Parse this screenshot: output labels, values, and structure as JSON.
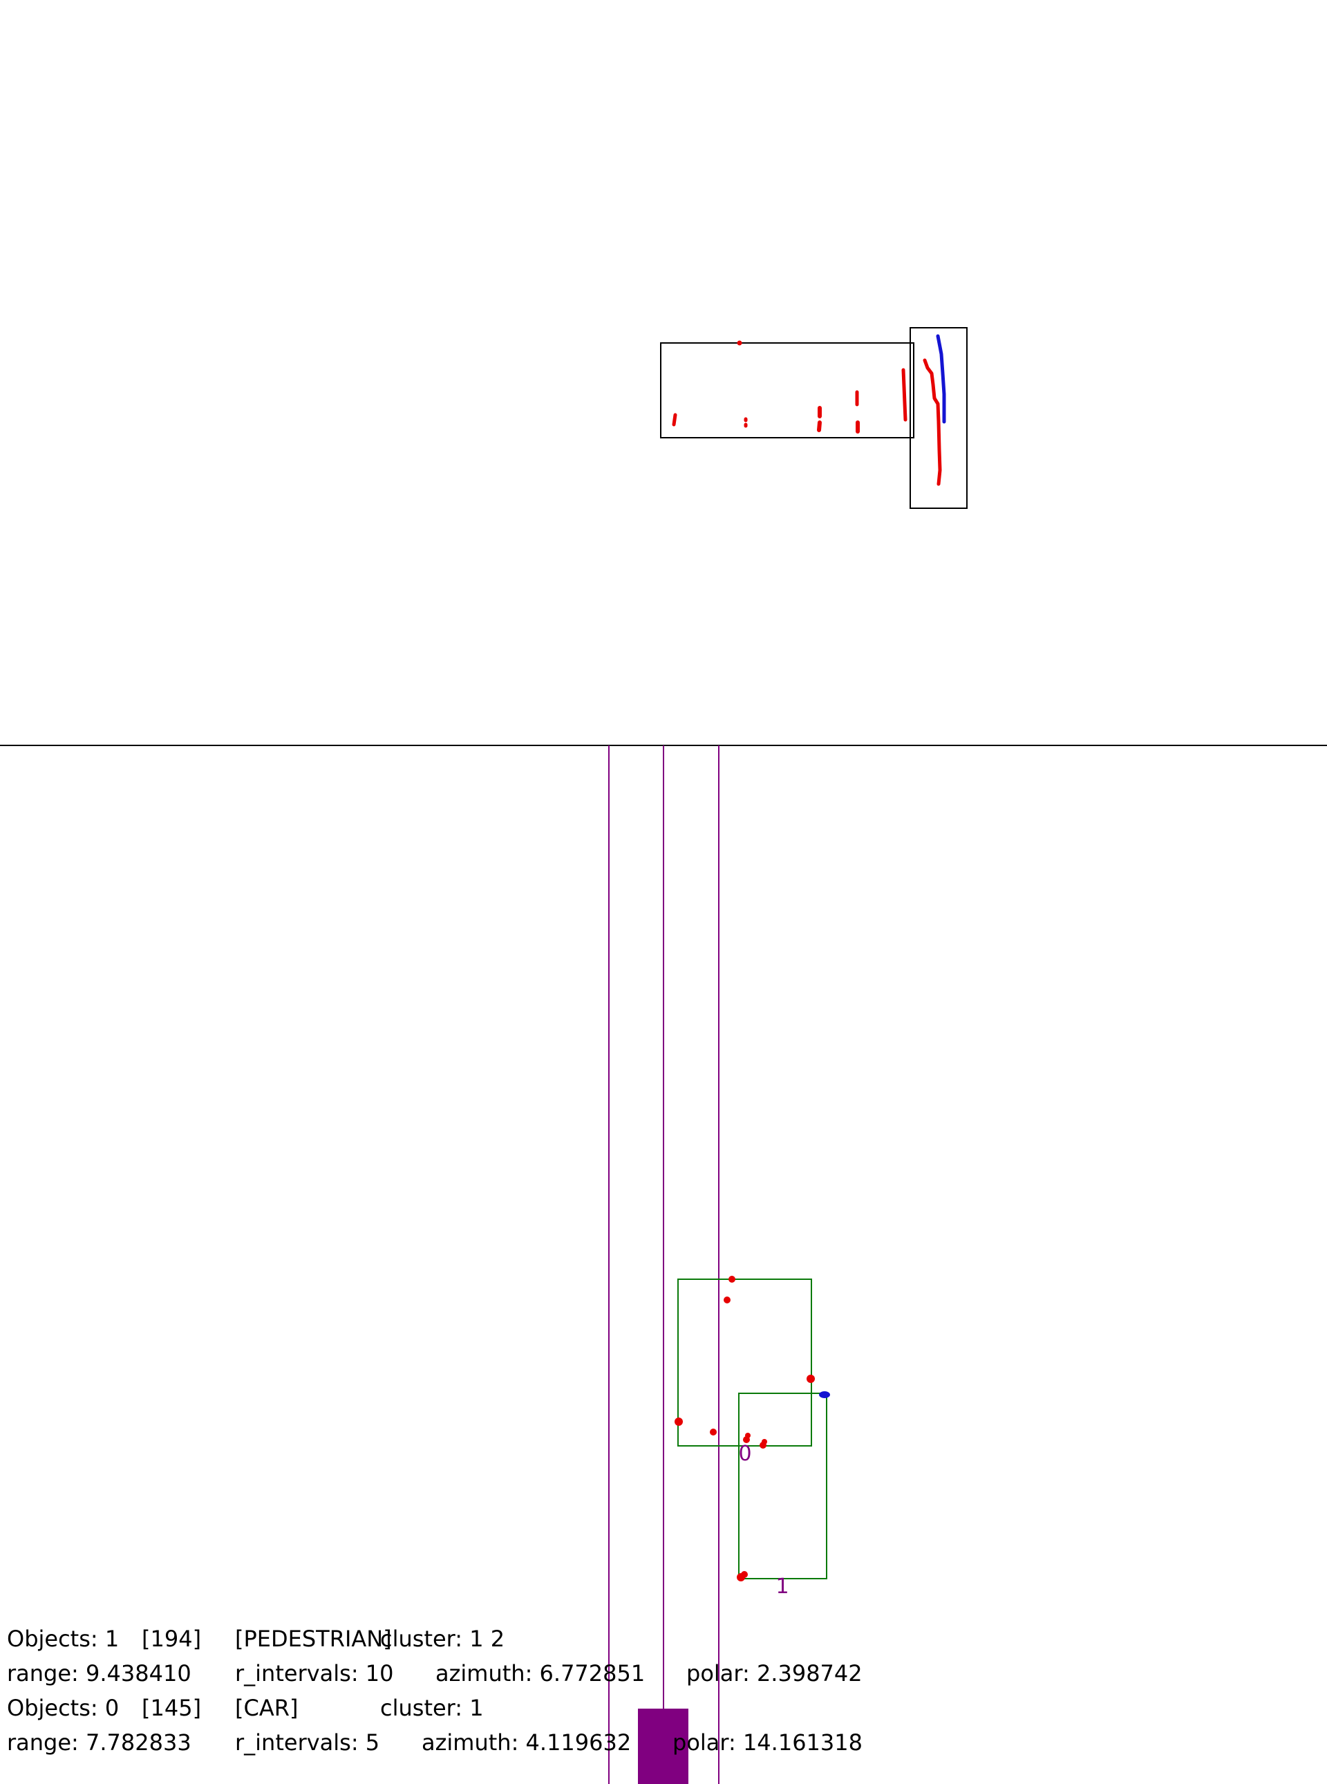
{
  "colors": {
    "background": "#ffffff",
    "box": "#000000",
    "divider": "#000000",
    "lane": "#800080",
    "ego_vehicle": "#800080",
    "cluster_box": "#0a7a0a",
    "points_primary": "#e60000",
    "points_secondary": "#1414d2",
    "label": "#000000",
    "cluster_label": "#800080"
  },
  "cluster_labels": [
    "0",
    "1"
  ],
  "info": [
    {
      "objects_label": "Objects: 1",
      "id": "[194]",
      "class": "[PEDESTRIAN]",
      "cluster": "cluster: 1 2",
      "range": "range: 9.438410",
      "r_intervals": "r_intervals: 10",
      "azimuth": "azimuth: 6.772851",
      "polar": "polar: 2.398742"
    },
    {
      "objects_label": "Objects: 0",
      "id": "[145]",
      "class": "[CAR]",
      "cluster": "cluster: 1",
      "range": "range: 7.782833",
      "r_intervals": "r_intervals: 5",
      "azimuth": "azimuth: 4.119632",
      "polar": "polar: 14.161318"
    }
  ]
}
